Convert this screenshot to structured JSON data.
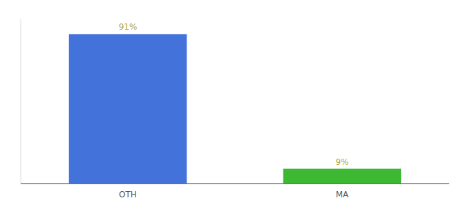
{
  "chart_data": {
    "type": "bar",
    "categories": [
      "OTH",
      "MA"
    ],
    "values": [
      91,
      9
    ],
    "value_labels": [
      "91%",
      "9%"
    ],
    "colors": [
      "#4472db",
      "#3db832"
    ],
    "ylim": [
      0,
      100
    ],
    "grid": false,
    "data_labels": true,
    "tick_labels": "x"
  }
}
